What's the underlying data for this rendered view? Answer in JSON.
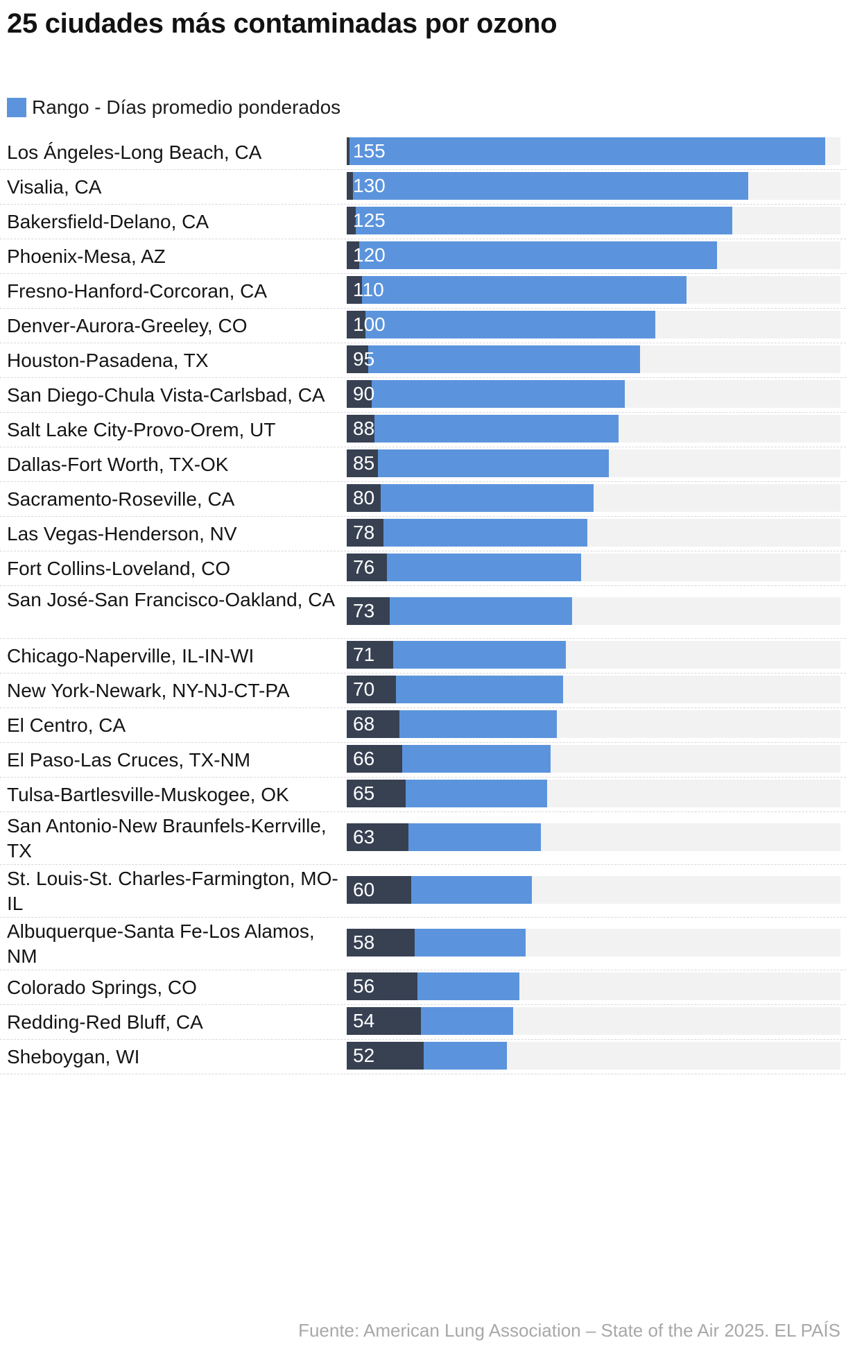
{
  "colors": {
    "bar": "#5b94dc",
    "dark": "#374152",
    "track": "#f2f2f2"
  },
  "chart_data": {
    "type": "bar",
    "orientation": "horizontal",
    "title": "25 ciudades más contaminadas por ozono",
    "legend": [
      "Rango - Días promedio ponderados"
    ],
    "xlim": [
      0,
      160
    ],
    "categories": [
      "Los Ángeles-Long Beach, CA",
      "Visalia, CA",
      "Bakersfield-Delano, CA",
      "Phoenix-Mesa, AZ",
      "Fresno-Hanford-Corcoran, CA",
      "Denver-Aurora-Greeley, CO",
      "Houston-Pasadena, TX",
      "San Diego-Chula Vista-Carlsbad, CA",
      "Salt Lake City-Provo-Orem, UT",
      "Dallas-Fort Worth, TX-OK",
      "Sacramento-Roseville, CA",
      "Las Vegas-Henderson, NV",
      "Fort Collins-Loveland, CO",
      "San José-San Francisco-Oakland, CA",
      "Chicago-Naperville, IL-IN-WI",
      "New York-Newark, NY-NJ-CT-PA",
      "El Centro, CA",
      "El Paso-Las Cruces, TX-NM",
      "Tulsa-Bartlesville-Muskogee, OK",
      "San Antonio-New Braunfels-Kerrville, TX",
      "St. Louis-St. Charles-Farmington, MO-IL",
      "Albuquerque-Santa Fe-Los Alamos, NM",
      "Colorado Springs, CO",
      "Redding-Red Bluff, CA",
      "Sheboygan, WI"
    ],
    "series": [
      {
        "name": "Rango",
        "values": [
          1,
          2,
          3,
          4,
          5,
          6,
          7,
          8,
          9,
          10,
          11,
          12,
          13,
          14,
          15,
          16,
          17,
          18,
          19,
          20,
          21,
          22,
          23,
          24,
          25
        ]
      },
      {
        "name": "Días promedio ponderados",
        "values": [
          155,
          130,
          125,
          120,
          110,
          100,
          95,
          90,
          88,
          85,
          80,
          78,
          76,
          73,
          71,
          70,
          68,
          66,
          65,
          63,
          60,
          58,
          56,
          54,
          52
        ]
      }
    ]
  },
  "source": "Fuente: American Lung Association – State of the Air 2025. EL PAÍS"
}
